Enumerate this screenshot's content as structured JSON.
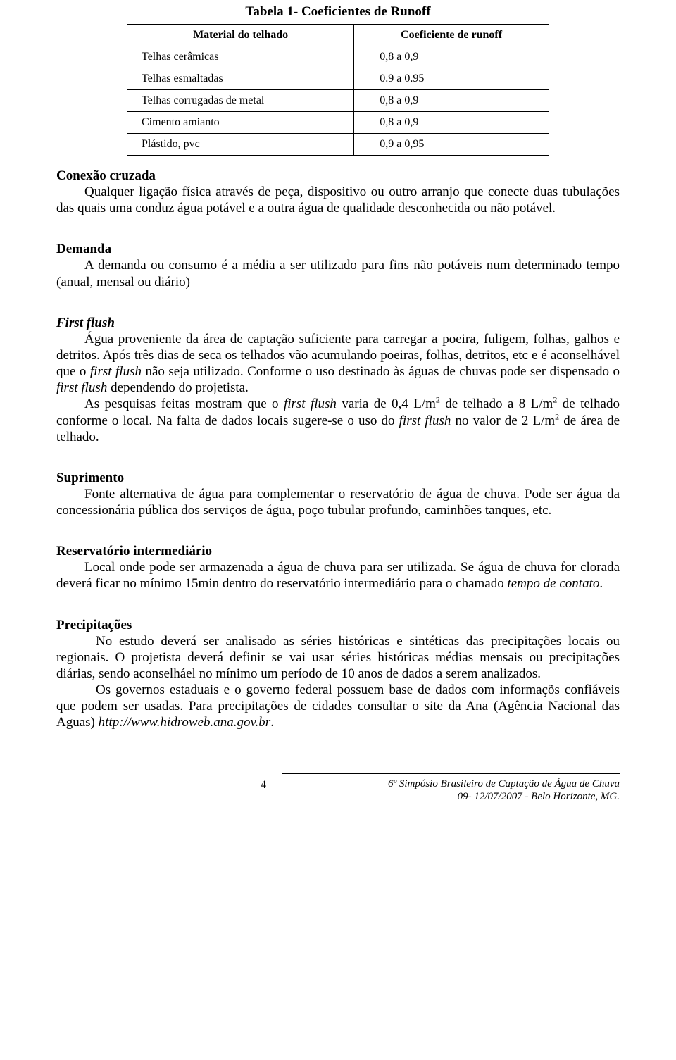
{
  "table": {
    "caption": "Tabela 1- Coeficientes de Runoff",
    "headers": [
      "Material do telhado",
      "Coeficiente de runoff"
    ],
    "rows": [
      [
        "Telhas cerâmicas",
        "0,8 a 0,9"
      ],
      [
        "Telhas esmaltadas",
        "0.9 a 0.95"
      ],
      [
        "Telhas corrugadas de metal",
        "0,8 a 0,9"
      ],
      [
        "Cimento amianto",
        "0,8 a 0,9"
      ],
      [
        "Plástido, pvc",
        "0,9 a 0,95"
      ]
    ]
  },
  "s_conexao": {
    "head": "Conexão cruzada",
    "p1a": "Qualquer ligação física através de peça, dispositivo ou outro arranjo que conecte duas tubulações das quais uma conduz água potável e a outra água de qualidade desconhecida ou não potável."
  },
  "s_demanda": {
    "head": "Demanda",
    "p1": "A demanda ou consumo é a média a ser utilizado para fins não potáveis num determinado tempo (anual, mensal ou diário)"
  },
  "s_firstflush": {
    "head": "First flush",
    "p1_pre": "Água proveniente da área de captação suficiente para carregar a poeira, fuligem, folhas, galhos e detritos. Após três dias de seca os telhados vão acumulando poeiras, folhas, detritos, etc e é aconselhável que o ",
    "ff": "first flush",
    "p1_mid": " não seja utilizado. Conforme o uso destinado às águas de chuvas pode ser dispensado o ",
    "p1_post": " dependendo do projetista.",
    "p2_pre": "As pesquisas feitas mostram que o ",
    "p2_mid1": " varia de 0,4 L/m",
    "sup2": "2",
    "p2_mid2": " de telhado a 8 L/m",
    "p2_mid3": " de telhado conforme o local. Na falta de dados locais sugere-se o uso do ",
    "p2_mid4": " no valor de 2 L/m",
    "p2_post": " de área de telhado."
  },
  "s_suprimento": {
    "head": "Suprimento",
    "p1": "Fonte alternativa de água para complementar o reservatório de água de chuva. Pode ser água da concessionária pública dos serviços de água, poço tubular profundo, caminhões tanques, etc."
  },
  "s_reserv": {
    "head": "Reservatório intermediário",
    "p1_pre": "Local onde pode ser armazenada a água de chuva para ser utilizada. Se água de chuva for clorada deverá ficar no mínimo 15min dentro do reservatório intermediário para o chamado ",
    "tempo": "tempo de contato",
    "p1_post": "."
  },
  "s_precip": {
    "head": "Precipitações",
    "p1": "No estudo deverá ser analisado as séries históricas e sintéticas das precipitações locais ou regionais. O projetista deverá definir se vai usar séries históricas médias mensais ou precipitações diárias, sendo aconselháel no mínimo um período de 10 anos de dados a serem analizados.",
    "p2_pre": "Os governos estaduais e o governo federal possuem base de dados com informaçõs confiáveis que podem ser usadas. Para precipitações de cidades consultar o site da Ana (Agência Nacional das Aguas) ",
    "url": "http://www.hidroweb.ana.gov.br",
    "p2_post": "."
  },
  "footer": {
    "page_num": "4",
    "conf_line1": "6º Simpósio Brasileiro de Captação de Água de Chuva",
    "conf_line2": "09- 12/07/2007 - Belo Horizonte, MG."
  }
}
